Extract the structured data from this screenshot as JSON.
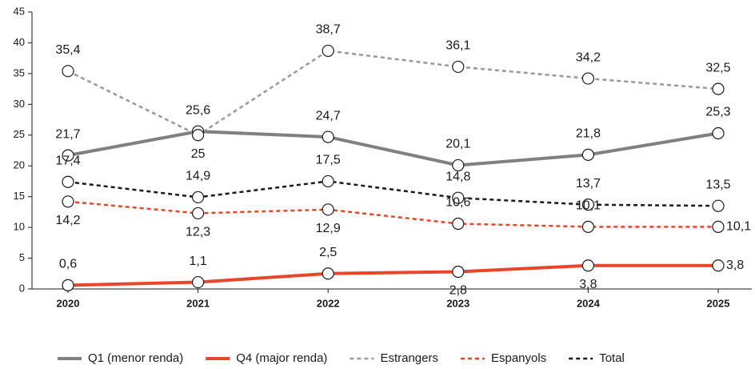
{
  "chart_data": {
    "type": "line",
    "categories": [
      "2020",
      "2021",
      "2022",
      "2023",
      "2024",
      "2025"
    ],
    "series": [
      {
        "name": "Q1 (menor renda)",
        "color": "#808080",
        "line": "solid",
        "values": [
          21.7,
          25.6,
          24.7,
          20.1,
          21.8,
          25.3
        ],
        "value_labels": [
          "21,7",
          "25,6",
          "24,7",
          "20,1",
          "21,8",
          "25,3"
        ]
      },
      {
        "name": "Q4 (major renda)",
        "color": "#e8462a",
        "line": "solid",
        "values": [
          0.6,
          1.1,
          2.5,
          2.8,
          3.8,
          3.8
        ],
        "value_labels": [
          "0,6",
          "1,1",
          "2,5",
          "2,8",
          "3,8",
          "3,8"
        ]
      },
      {
        "name": "Estrangers",
        "color": "#999999",
        "line": "dashed",
        "values": [
          35.4,
          25,
          38.7,
          36.1,
          34.2,
          32.5
        ],
        "value_labels": [
          "35,4",
          "25",
          "38,7",
          "36,1",
          "34,2",
          "32,5"
        ]
      },
      {
        "name": "Espanyols",
        "color": "#e8462a",
        "line": "dashed",
        "values": [
          14.2,
          12.3,
          12.9,
          10.6,
          10.1,
          10.1
        ],
        "value_labels": [
          "14,2",
          "12,3",
          "12,9",
          "10,6",
          "10,1",
          "10,1"
        ]
      },
      {
        "name": "Total",
        "color": "#1a1a1a",
        "line": "dashed",
        "values": [
          17.4,
          14.9,
          17.5,
          14.8,
          13.7,
          13.5
        ],
        "value_labels": [
          "17,4",
          "14,9",
          "17,5",
          "14,8",
          "13,7",
          "13,5"
        ]
      }
    ],
    "ylim": [
      0,
      45
    ],
    "yticks": [
      0,
      5,
      10,
      15,
      20,
      25,
      30,
      35,
      40,
      45
    ],
    "grid": false,
    "legend": "bottom"
  }
}
